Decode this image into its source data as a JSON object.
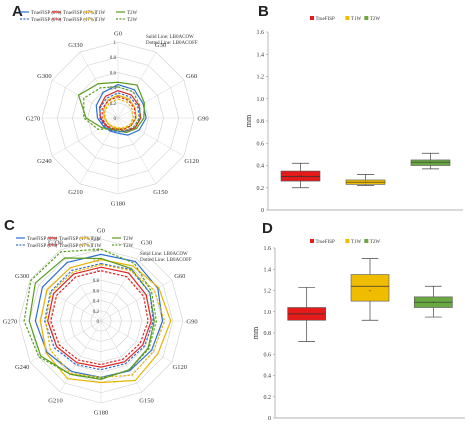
{
  "chart_data": [
    {
      "panel": "A",
      "type": "radar",
      "categories": [
        "G0",
        "G30",
        "G60",
        "G90",
        "G120",
        "G150",
        "G180",
        "G210",
        "G240",
        "G270",
        "G300",
        "G330"
      ],
      "rlim": [
        0,
        1
      ],
      "ticks": [
        "1",
        "0.8",
        "0.6",
        "0.4",
        "0.2",
        "0"
      ],
      "annotation": [
        "Solid Line: LB0ACOW",
        "Dotted Line: LB0ACOFF"
      ],
      "legend": [
        "TrueFISP (2%)",
        "TrueFISP (17%)",
        "T1W",
        "T2W",
        "TrueFISP (2%)",
        "TrueFISP (17%)",
        "T1W",
        "T2W"
      ],
      "series": [
        {
          "style": "solid",
          "color": "#2e6fd1",
          "values": [
            0.44,
            0.43,
            0.38,
            0.37,
            0.32,
            0.26,
            0.2,
            0.2,
            0.22,
            0.27,
            0.33,
            0.39
          ]
        },
        {
          "style": "solid",
          "color": "#e02424",
          "values": [
            0.36,
            0.35,
            0.32,
            0.3,
            0.26,
            0.2,
            0.17,
            0.17,
            0.19,
            0.23,
            0.28,
            0.33
          ]
        },
        {
          "style": "solid",
          "color": "#e8b400",
          "values": [
            0.3,
            0.29,
            0.26,
            0.24,
            0.2,
            0.16,
            0.14,
            0.14,
            0.15,
            0.18,
            0.22,
            0.27
          ]
        },
        {
          "style": "solid",
          "color": "#5a9c1e",
          "values": [
            0.47,
            0.5,
            0.4,
            0.34,
            0.28,
            0.22,
            0.17,
            0.18,
            0.25,
            0.42,
            0.6,
            0.52
          ]
        },
        {
          "style": "dashed",
          "color": "#2e6fd1",
          "values": [
            0.33,
            0.32,
            0.3,
            0.28,
            0.24,
            0.2,
            0.18,
            0.19,
            0.21,
            0.24,
            0.27,
            0.3
          ]
        },
        {
          "style": "dashed",
          "color": "#e02424",
          "values": [
            0.28,
            0.27,
            0.25,
            0.23,
            0.2,
            0.17,
            0.15,
            0.16,
            0.18,
            0.21,
            0.24,
            0.26
          ]
        },
        {
          "style": "dashed",
          "color": "#e8b400",
          "values": [
            0.25,
            0.24,
            0.22,
            0.2,
            0.18,
            0.15,
            0.13,
            0.13,
            0.15,
            0.17,
            0.2,
            0.23
          ]
        },
        {
          "style": "dashed",
          "color": "#5a9c1e",
          "values": [
            0.41,
            0.4,
            0.33,
            0.29,
            0.24,
            0.19,
            0.15,
            0.16,
            0.3,
            0.45,
            0.52,
            0.46
          ]
        }
      ]
    },
    {
      "panel": "B",
      "type": "box",
      "ylabel": "mm",
      "yticks": [
        "0",
        "0.2",
        "0.4",
        "0.6",
        "0.8",
        "1.0",
        "1.2",
        "1.4",
        "1.6"
      ],
      "ylim": [
        0,
        1.6
      ],
      "legend": [
        "TrueFISP",
        "T1W",
        "T2W"
      ],
      "series": [
        {
          "name": "TrueFISP",
          "color": "#e31b1b",
          "min": 0.2,
          "q1": 0.26,
          "median": 0.3,
          "mean": 0.31,
          "q3": 0.35,
          "max": 0.42
        },
        {
          "name": "T1W",
          "color": "#f0bc00",
          "min": 0.22,
          "q1": 0.23,
          "median": 0.25,
          "mean": 0.25,
          "q3": 0.27,
          "max": 0.32
        },
        {
          "name": "T2W",
          "color": "#6aa842",
          "min": 0.37,
          "q1": 0.4,
          "median": 0.43,
          "mean": 0.43,
          "q3": 0.45,
          "max": 0.51
        }
      ]
    },
    {
      "panel": "C",
      "type": "radar",
      "categories": [
        "G0",
        "G30",
        "G60",
        "G90",
        "G120",
        "G150",
        "G180",
        "G210",
        "G240",
        "G270",
        "G300",
        "G330"
      ],
      "rlim": [
        0,
        1.6
      ],
      "ticks": [
        "1.6",
        "1.4",
        "1.2",
        "1",
        "0.8",
        "0.6",
        "0.4",
        "0.2",
        "0"
      ],
      "annotation": [
        "Solid Line: LB0ACOW",
        "Dotted Line: LB0ACOFF"
      ],
      "legend": [
        "TrueFISP (2%)",
        "TrueFISP (17%)",
        "T1W",
        "T2W",
        "TrueFISP (2%)",
        "TrueFISP (17%)",
        "T1W",
        "T2W"
      ],
      "series": [
        {
          "style": "solid",
          "color": "#2e6fd1",
          "values": [
            1.3,
            1.34,
            1.28,
            1.2,
            1.14,
            1.12,
            1.1,
            1.14,
            1.22,
            1.28,
            1.32,
            1.32
          ]
        },
        {
          "style": "solid",
          "color": "#e02424",
          "values": [
            1.05,
            1.08,
            1.02,
            0.98,
            0.94,
            0.92,
            0.9,
            0.94,
            1.0,
            1.04,
            1.07,
            1.06
          ]
        },
        {
          "style": "solid",
          "color": "#e8b400",
          "values": [
            1.2,
            1.24,
            1.3,
            1.36,
            1.28,
            1.34,
            1.2,
            1.3,
            1.24,
            1.18,
            1.22,
            1.2
          ]
        },
        {
          "style": "solid",
          "color": "#5a9c1e",
          "values": [
            1.22,
            1.18,
            1.1,
            1.04,
            1.06,
            1.1,
            1.14,
            1.2,
            1.36,
            1.4,
            1.48,
            1.42
          ]
        },
        {
          "style": "dashed",
          "color": "#2e6fd1",
          "values": [
            1.12,
            1.16,
            1.1,
            1.02,
            0.98,
            0.96,
            0.95,
            0.98,
            1.05,
            1.1,
            1.14,
            1.14
          ]
        },
        {
          "style": "dashed",
          "color": "#e02424",
          "values": [
            0.98,
            1.0,
            0.96,
            0.92,
            0.88,
            0.86,
            0.85,
            0.88,
            0.94,
            0.98,
            1.0,
            0.99
          ]
        },
        {
          "style": "dashed",
          "color": "#e8b400",
          "values": [
            1.1,
            1.14,
            1.2,
            1.24,
            1.18,
            1.22,
            1.1,
            1.18,
            1.14,
            1.08,
            1.12,
            1.1
          ]
        },
        {
          "style": "dashed",
          "color": "#5a9c1e",
          "values": [
            1.4,
            1.3,
            1.14,
            1.08,
            1.08,
            1.1,
            1.12,
            1.2,
            1.4,
            1.5,
            1.58,
            1.56
          ]
        }
      ]
    },
    {
      "panel": "D",
      "type": "box",
      "ylabel": "mm",
      "yticks": [
        "0",
        "0.2",
        "0.4",
        "0.6",
        "0.8",
        "1.0",
        "1.2",
        "1.4",
        "1.6"
      ],
      "ylim": [
        0,
        1.6
      ],
      "legend": [
        "TrueFISP",
        "T1W",
        "T2W"
      ],
      "series": [
        {
          "name": "TrueFISP",
          "color": "#e31b1b",
          "min": 0.72,
          "q1": 0.92,
          "median": 0.98,
          "mean": 0.98,
          "q3": 1.04,
          "max": 1.23
        },
        {
          "name": "T1W",
          "color": "#f0bc00",
          "min": 0.92,
          "q1": 1.1,
          "median": 1.24,
          "mean": 1.2,
          "q3": 1.35,
          "max": 1.5
        },
        {
          "name": "T2W",
          "color": "#6aa842",
          "min": 0.95,
          "q1": 1.04,
          "median": 1.09,
          "mean": 1.09,
          "q3": 1.14,
          "max": 1.24
        }
      ]
    }
  ],
  "panel_labels": [
    "A",
    "B",
    "C",
    "D"
  ]
}
